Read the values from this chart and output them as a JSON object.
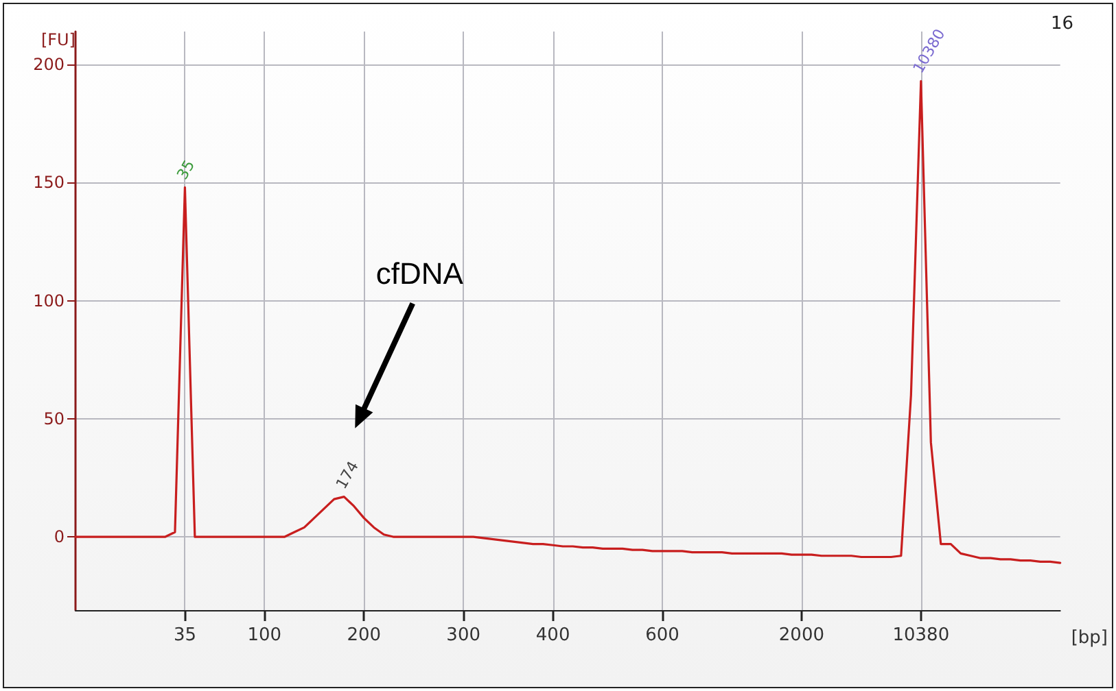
{
  "chart_data": {
    "type": "line",
    "xlabel": "[bp]",
    "ylabel": "[FU]",
    "categories": [
      null,
      null,
      null,
      null,
      null,
      null,
      null,
      null,
      null,
      null,
      null,
      "35",
      null,
      null,
      null,
      null,
      null,
      null,
      null,
      "100",
      null,
      null,
      null,
      null,
      null,
      null,
      null,
      null,
      null,
      "200",
      null,
      null,
      null,
      null,
      null,
      null,
      null,
      null,
      null,
      "300",
      null,
      null,
      null,
      null,
      null,
      null,
      null,
      null,
      "400",
      null,
      null,
      null,
      null,
      null,
      null,
      null,
      null,
      null,
      null,
      "600",
      null,
      null,
      null,
      null,
      null,
      null,
      null,
      null,
      null,
      null,
      null,
      null,
      null,
      "2000",
      null,
      null,
      null,
      null,
      null,
      null,
      null,
      null,
      null,
      null,
      null,
      "10380",
      null,
      null,
      null,
      null,
      null,
      null,
      null,
      null,
      null,
      null,
      null,
      null,
      null,
      null
    ],
    "ylim": [
      -31,
      214
    ],
    "yticks": [
      0,
      50,
      100,
      150,
      200
    ],
    "grid": true,
    "marker": "none",
    "line_style": "solid",
    "series": [
      {
        "color": "#c81e1e",
        "values": [
          0,
          0,
          0,
          0,
          0,
          0,
          0,
          0,
          0,
          0,
          2,
          148,
          0,
          0,
          0,
          0,
          0,
          0,
          0,
          0,
          0,
          0,
          2,
          4,
          8,
          12,
          16,
          17,
          13,
          8,
          4,
          1,
          0,
          0,
          0,
          0,
          0,
          0,
          0,
          0,
          0,
          -0.5,
          -1,
          -1.5,
          -2,
          -2.5,
          -3,
          -3,
          -3.5,
          -4,
          -4,
          -4.5,
          -4.5,
          -5,
          -5,
          -5,
          -5.5,
          -5.5,
          -6,
          -6,
          -6,
          -6,
          -6.5,
          -6.5,
          -6.5,
          -6.5,
          -7,
          -7,
          -7,
          -7,
          -7,
          -7,
          -7.5,
          -7.5,
          -7.5,
          -8,
          -8,
          -8,
          -8,
          -8.5,
          -8.5,
          -8.5,
          -8.5,
          -8,
          60,
          193,
          40,
          -3,
          -3,
          -7,
          -8,
          -9,
          -9,
          -9.5,
          -9.5,
          -10,
          -10,
          -10.5,
          -10.5,
          -11
        ]
      }
    ],
    "annotations": [
      {
        "text": "35",
        "x": "35",
        "y": 148
      },
      {
        "text": "174",
        "y": 17
      },
      {
        "text": "10380",
        "x": "10380",
        "y": 193
      },
      "cfDNA",
      "16"
    ]
  }
}
